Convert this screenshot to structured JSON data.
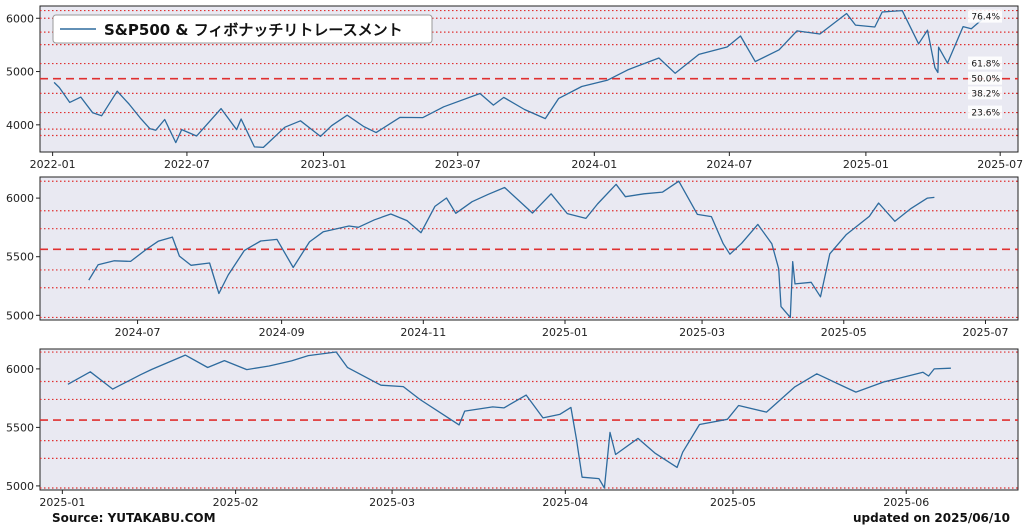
{
  "legend": {
    "label": "S&P500 & フィボナッチリトレースメント",
    "color": "#2e6b9e"
  },
  "footer": {
    "source": "Source: YUTAKABU.COM",
    "updated": "updated on 2025/06/10"
  },
  "colors": {
    "plot_bg": "#e9e9f2",
    "line": "#2e6b9e",
    "fib_line": "#e03030"
  },
  "chart_data": [
    {
      "type": "line",
      "title": "",
      "legend_position": "top-left",
      "series": [
        {
          "name": "S&P500",
          "points": [
            [
              "2022-01-03",
              4796
            ],
            [
              "2022-01-10",
              4700
            ],
            [
              "2022-01-24",
              4420
            ],
            [
              "2022-02-08",
              4520
            ],
            [
              "2022-02-24",
              4225
            ],
            [
              "2022-03-08",
              4170
            ],
            [
              "2022-03-29",
              4631
            ],
            [
              "2022-04-14",
              4390
            ],
            [
              "2022-04-29",
              4130
            ],
            [
              "2022-05-12",
              3930
            ],
            [
              "2022-05-20",
              3900
            ],
            [
              "2022-06-01",
              4100
            ],
            [
              "2022-06-16",
              3666
            ],
            [
              "2022-06-24",
              3911
            ],
            [
              "2022-07-14",
              3790
            ],
            [
              "2022-08-16",
              4305
            ],
            [
              "2022-09-06",
              3910
            ],
            [
              "2022-09-12",
              4110
            ],
            [
              "2022-09-30",
              3585
            ],
            [
              "2022-10-12",
              3577
            ],
            [
              "2022-11-10",
              3956
            ],
            [
              "2022-12-01",
              4076
            ],
            [
              "2022-12-28",
              3783
            ],
            [
              "2023-01-12",
              3983
            ],
            [
              "2023-02-02",
              4180
            ],
            [
              "2023-02-24",
              3970
            ],
            [
              "2023-03-13",
              3855
            ],
            [
              "2023-04-14",
              4140
            ],
            [
              "2023-05-15",
              4136
            ],
            [
              "2023-06-12",
              4338
            ],
            [
              "2023-07-31",
              4588
            ],
            [
              "2023-08-18",
              4370
            ],
            [
              "2023-09-01",
              4515
            ],
            [
              "2023-09-29",
              4288
            ],
            [
              "2023-10-27",
              4117
            ],
            [
              "2023-11-14",
              4495
            ],
            [
              "2023-12-15",
              4719
            ],
            [
              "2024-01-19",
              4839
            ],
            [
              "2024-02-15",
              5030
            ],
            [
              "2024-03-28",
              5254
            ],
            [
              "2024-04-19",
              4967
            ],
            [
              "2024-05-21",
              5321
            ],
            [
              "2024-06-28",
              5460
            ],
            [
              "2024-07-16",
              5667
            ],
            [
              "2024-08-05",
              5186
            ],
            [
              "2024-09-06",
              5408
            ],
            [
              "2024-09-30",
              5762
            ],
            [
              "2024-10-31",
              5705
            ],
            [
              "2024-12-06",
              6090
            ],
            [
              "2024-12-18",
              5872
            ],
            [
              "2025-01-13",
              5836
            ],
            [
              "2025-01-23",
              6118
            ],
            [
              "2025-02-19",
              6144
            ],
            [
              "2025-03-13",
              5521
            ],
            [
              "2025-03-25",
              5776
            ],
            [
              "2025-04-04",
              5074
            ],
            [
              "2025-04-08",
              4982
            ],
            [
              "2025-04-09",
              5457
            ],
            [
              "2025-04-21",
              5158
            ],
            [
              "2025-05-12",
              5844
            ],
            [
              "2025-05-23",
              5802
            ],
            [
              "2025-06-09",
              6006
            ]
          ]
        }
      ],
      "xlim": [
        "2021-12-15",
        "2025-07-25"
      ],
      "ylim": [
        3490,
        6230
      ],
      "x_ticks": [
        "2022-01",
        "2022-07",
        "2023-01",
        "2023-07",
        "2024-01",
        "2024-07",
        "2025-01",
        "2025-07"
      ],
      "y_ticks": [
        4000,
        5000,
        6000
      ],
      "fibonacci": {
        "levels": [
          {
            "label": "23.6%",
            "value": 4230
          },
          {
            "label": "38.2%",
            "value": 4590
          },
          {
            "label": "50.0%",
            "value": 4865
          },
          {
            "label": "61.8%",
            "value": 5150
          },
          {
            "label": "76.4%",
            "value": 5505
          }
        ],
        "grid_values": [
          3800,
          3920,
          4230,
          4590,
          4865,
          5150,
          5505,
          5740,
          6000,
          6144
        ],
        "dashed_value": 4865
      },
      "grid": true
    },
    {
      "type": "line",
      "title": "",
      "series": [
        {
          "name": "S&P500",
          "points": [
            [
              "2024-06-10",
              5300
            ],
            [
              "2024-06-14",
              5431
            ],
            [
              "2024-06-21",
              5465
            ],
            [
              "2024-06-28",
              5460
            ],
            [
              "2024-07-05",
              5567
            ],
            [
              "2024-07-10",
              5633
            ],
            [
              "2024-07-16",
              5667
            ],
            [
              "2024-07-19",
              5505
            ],
            [
              "2024-07-24",
              5427
            ],
            [
              "2024-08-01",
              5446
            ],
            [
              "2024-08-05",
              5186
            ],
            [
              "2024-08-09",
              5344
            ],
            [
              "2024-08-16",
              5554
            ],
            [
              "2024-08-23",
              5634
            ],
            [
              "2024-08-30",
              5648
            ],
            [
              "2024-09-06",
              5408
            ],
            [
              "2024-09-13",
              5626
            ],
            [
              "2024-09-19",
              5713
            ],
            [
              "2024-09-30",
              5762
            ],
            [
              "2024-10-04",
              5751
            ],
            [
              "2024-10-11",
              5815
            ],
            [
              "2024-10-18",
              5864
            ],
            [
              "2024-10-25",
              5808
            ],
            [
              "2024-10-31",
              5705
            ],
            [
              "2024-11-06",
              5929
            ],
            [
              "2024-11-11",
              6001
            ],
            [
              "2024-11-15",
              5870
            ],
            [
              "2024-11-22",
              5969
            ],
            [
              "2024-11-29",
              6032
            ],
            [
              "2024-12-06",
              6090
            ],
            [
              "2024-12-18",
              5872
            ],
            [
              "2024-12-26",
              6037
            ],
            [
              "2025-01-02",
              5868
            ],
            [
              "2025-01-10",
              5827
            ],
            [
              "2025-01-15",
              5950
            ],
            [
              "2025-01-23",
              6118
            ],
            [
              "2025-01-27",
              6012
            ],
            [
              "2025-02-04",
              6037
            ],
            [
              "2025-02-12",
              6051
            ],
            [
              "2025-02-19",
              6144
            ],
            [
              "2025-02-27",
              5861
            ],
            [
              "2025-03-05",
              5842
            ],
            [
              "2025-03-10",
              5614
            ],
            [
              "2025-03-13",
              5521
            ],
            [
              "2025-03-18",
              5614
            ],
            [
              "2025-03-25",
              5776
            ],
            [
              "2025-03-31",
              5611
            ],
            [
              "2025-04-03",
              5397
            ],
            [
              "2025-04-04",
              5074
            ],
            [
              "2025-04-08",
              4982
            ],
            [
              "2025-04-09",
              5457
            ],
            [
              "2025-04-10",
              5268
            ],
            [
              "2025-04-17",
              5282
            ],
            [
              "2025-04-21",
              5158
            ],
            [
              "2025-04-25",
              5525
            ],
            [
              "2025-05-02",
              5687
            ],
            [
              "2025-05-12",
              5844
            ],
            [
              "2025-05-16",
              5958
            ],
            [
              "2025-05-23",
              5802
            ],
            [
              "2025-05-30",
              5912
            ],
            [
              "2025-06-06",
              6000
            ],
            [
              "2025-06-09",
              6006
            ]
          ]
        }
      ],
      "xlim": [
        "2024-05-20",
        "2025-07-15"
      ],
      "ylim": [
        4960,
        6180
      ],
      "x_ticks": [
        "2024-07",
        "2024-09",
        "2024-11",
        "2025-01",
        "2025-03",
        "2025-05",
        "2025-07"
      ],
      "y_ticks": [
        5000,
        5500,
        6000
      ],
      "fibonacci": {
        "grid_values": [
          4982,
          5235,
          5387,
          5563,
          5739,
          5892,
          6144
        ],
        "dashed_value": 5563
      },
      "grid": true
    },
    {
      "type": "line",
      "title": "",
      "series": [
        {
          "name": "S&P500",
          "points": [
            [
              "2025-01-02",
              5868
            ],
            [
              "2025-01-06",
              5975
            ],
            [
              "2025-01-10",
              5827
            ],
            [
              "2025-01-15",
              5950
            ],
            [
              "2025-01-17",
              5996
            ],
            [
              "2025-01-23",
              6118
            ],
            [
              "2025-01-27",
              6012
            ],
            [
              "2025-01-30",
              6071
            ],
            [
              "2025-02-03",
              5994
            ],
            [
              "2025-02-07",
              6025
            ],
            [
              "2025-02-11",
              6068
            ],
            [
              "2025-02-14",
              6114
            ],
            [
              "2025-02-19",
              6144
            ],
            [
              "2025-02-21",
              6013
            ],
            [
              "2025-02-27",
              5861
            ],
            [
              "2025-03-03",
              5849
            ],
            [
              "2025-03-06",
              5738
            ],
            [
              "2025-03-10",
              5614
            ],
            [
              "2025-03-13",
              5521
            ],
            [
              "2025-03-14",
              5639
            ],
            [
              "2025-03-19",
              5675
            ],
            [
              "2025-03-21",
              5667
            ],
            [
              "2025-03-25",
              5776
            ],
            [
              "2025-03-28",
              5581
            ],
            [
              "2025-03-31",
              5611
            ],
            [
              "2025-04-02",
              5671
            ],
            [
              "2025-04-03",
              5397
            ],
            [
              "2025-04-04",
              5074
            ],
            [
              "2025-04-07",
              5062
            ],
            [
              "2025-04-08",
              4982
            ],
            [
              "2025-04-09",
              5457
            ],
            [
              "2025-04-10",
              5268
            ],
            [
              "2025-04-14",
              5406
            ],
            [
              "2025-04-17",
              5282
            ],
            [
              "2025-04-21",
              5158
            ],
            [
              "2025-04-22",
              5288
            ],
            [
              "2025-04-25",
              5525
            ],
            [
              "2025-04-30",
              5569
            ],
            [
              "2025-05-02",
              5687
            ],
            [
              "2025-05-07",
              5631
            ],
            [
              "2025-05-12",
              5844
            ],
            [
              "2025-05-16",
              5958
            ],
            [
              "2025-05-21",
              5845
            ],
            [
              "2025-05-23",
              5802
            ],
            [
              "2025-05-28",
              5889
            ],
            [
              "2025-05-30",
              5912
            ],
            [
              "2025-06-04",
              5971
            ],
            [
              "2025-06-05",
              5939
            ],
            [
              "2025-06-06",
              6000
            ],
            [
              "2025-06-09",
              6006
            ]
          ]
        }
      ],
      "xlim": [
        "2024-12-28",
        "2025-06-21"
      ],
      "ylim": [
        4965,
        6170
      ],
      "x_ticks": [
        "2025-01",
        "2025-02",
        "2025-03",
        "2025-04",
        "2025-05",
        "2025-06"
      ],
      "y_ticks": [
        5000,
        5500,
        6000
      ],
      "fibonacci": {
        "grid_values": [
          4982,
          5235,
          5387,
          5563,
          5739,
          5892,
          6144
        ],
        "dashed_value": 5563
      },
      "grid": true
    }
  ]
}
